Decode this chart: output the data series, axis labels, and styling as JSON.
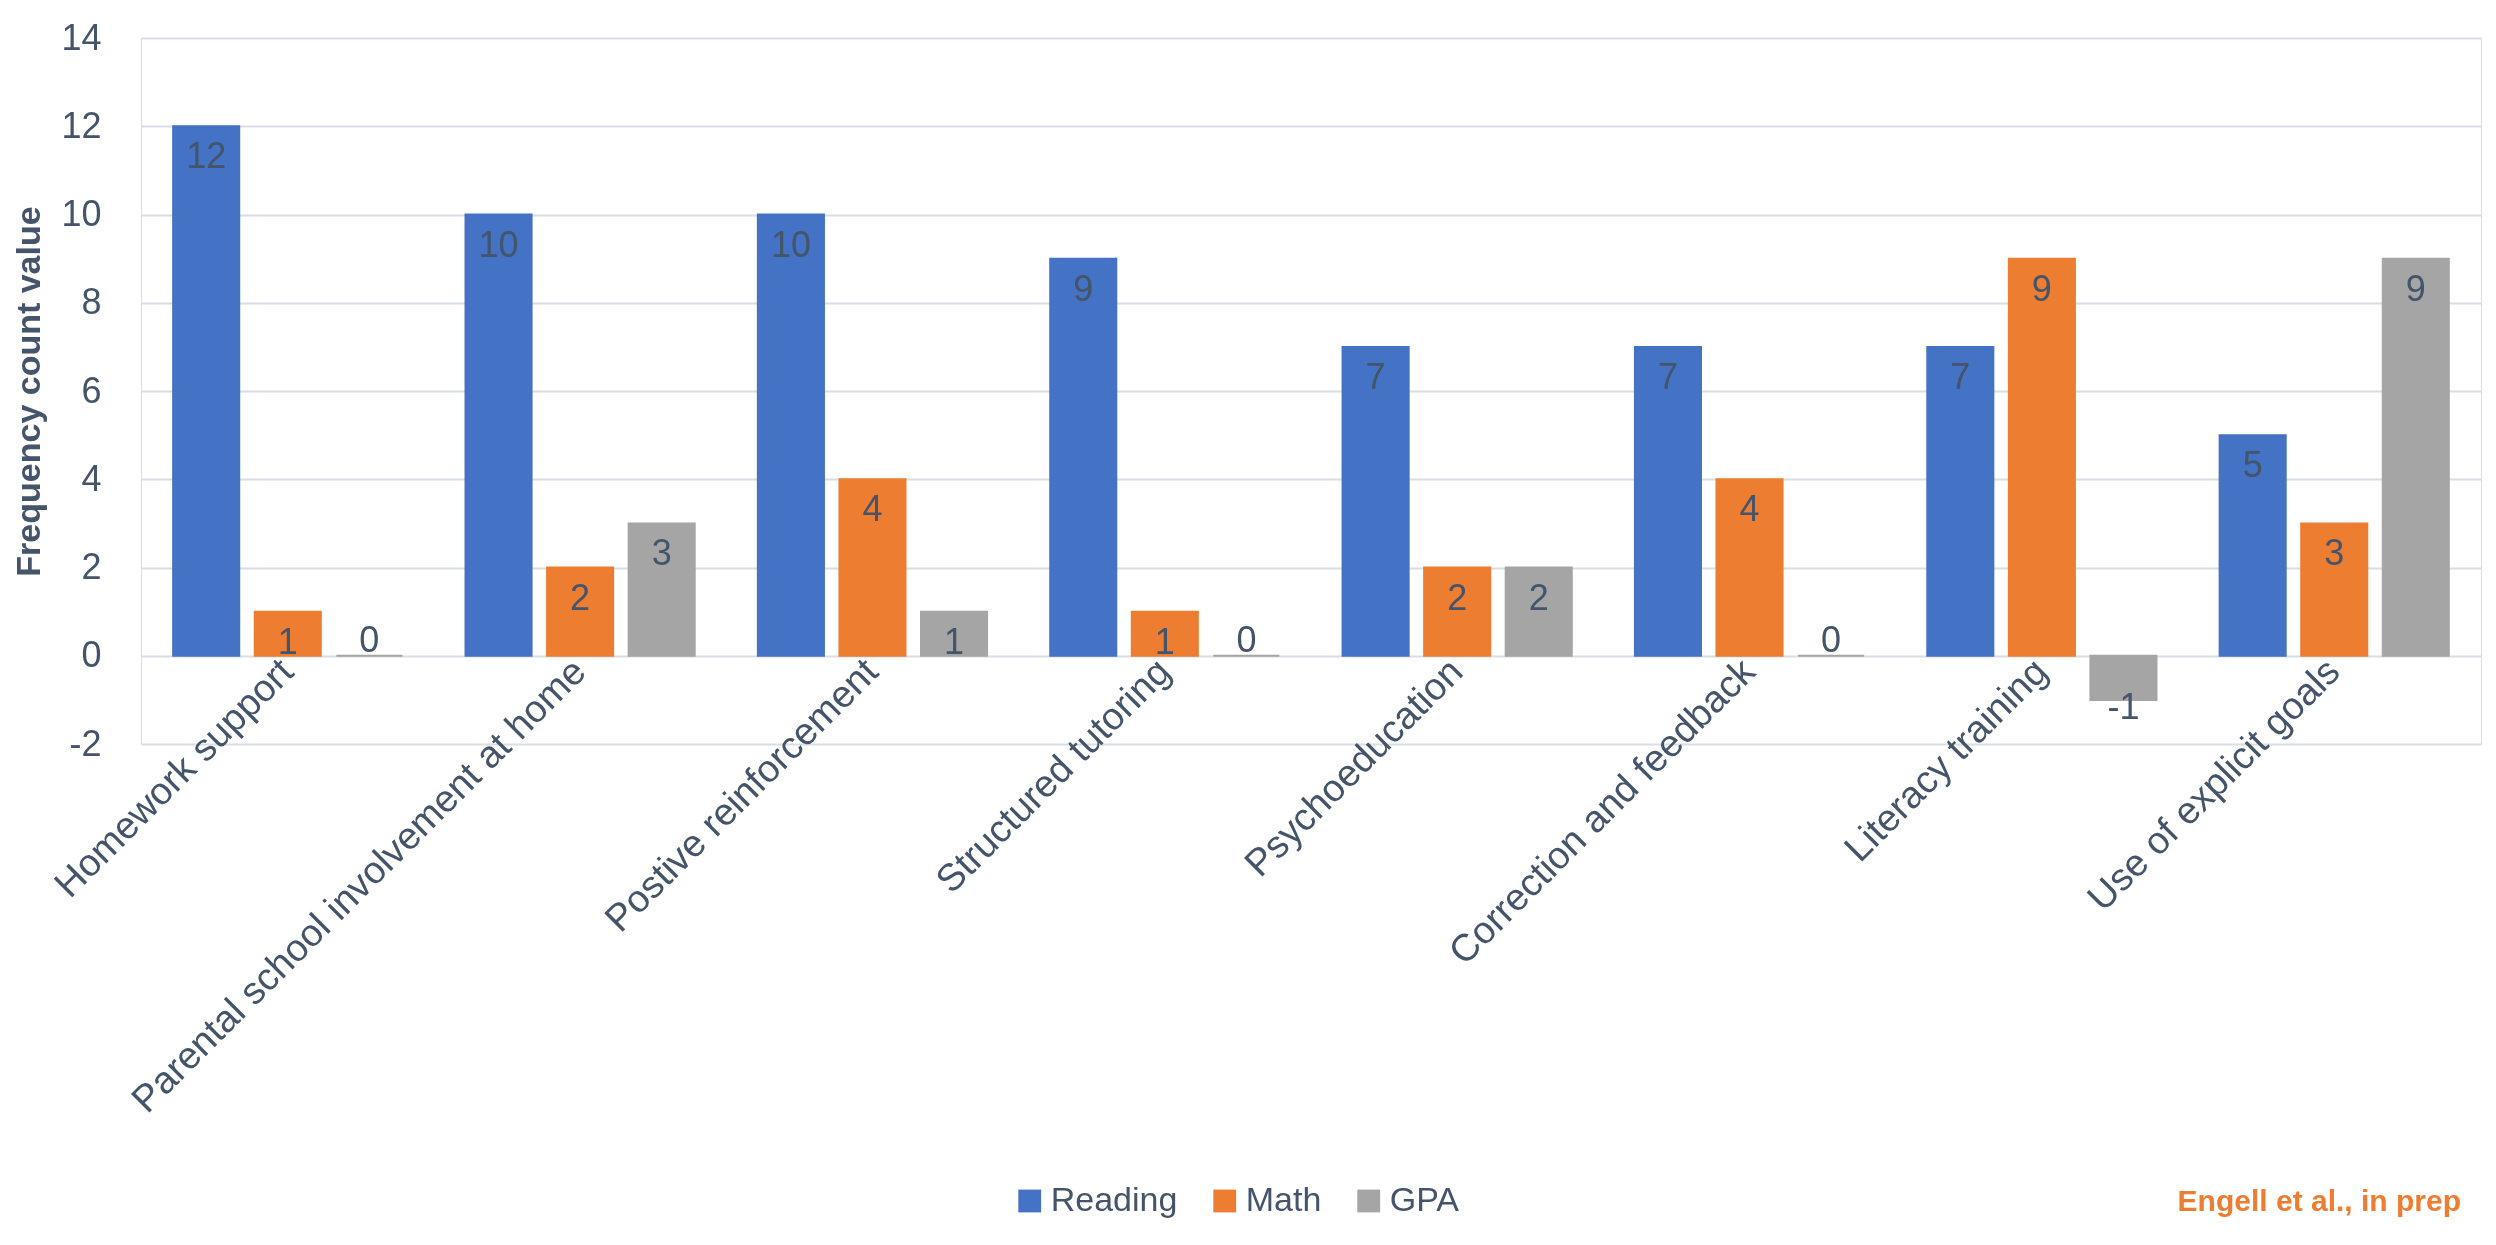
{
  "chart_data": {
    "type": "bar",
    "ylabel": "Frequency count value",
    "categories": [
      "Homework support",
      "Parental school involvement at home",
      "Postive reinforcement",
      "Structured tutoring",
      "Psychoeducation",
      "Correction and feedback",
      "Literacy training",
      "Use of explicit goals"
    ],
    "series": [
      {
        "name": "Reading",
        "color": "#4472c4",
        "values": [
          12,
          10,
          10,
          9,
          7,
          7,
          7,
          5
        ]
      },
      {
        "name": "Math",
        "color": "#ed7d31",
        "values": [
          1,
          2,
          4,
          1,
          2,
          4,
          9,
          3
        ]
      },
      {
        "name": "GPA",
        "color": "#a5a5a5",
        "values": [
          0,
          3,
          1,
          0,
          2,
          0,
          -1,
          9
        ]
      }
    ],
    "ylim": [
      -2,
      14
    ],
    "yticks": [
      -2,
      0,
      2,
      4,
      6,
      8,
      10,
      12,
      14
    ],
    "grid": "y",
    "legend": "bottom",
    "data_labels": true,
    "annotations": [
      "Engell et al., in prep"
    ]
  }
}
